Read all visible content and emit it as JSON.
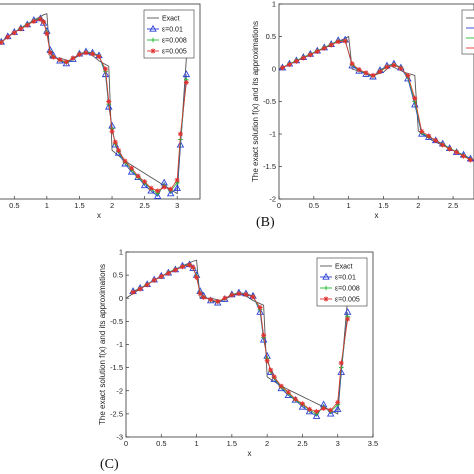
{
  "chart_data": [
    {
      "panel_label": "",
      "type": "line",
      "xlabel": "x",
      "ylabel": "",
      "xlim": [
        0,
        3.5
      ],
      "ylim": [
        -3,
        1
      ],
      "xticks": [
        "0.5",
        "1",
        "1.5",
        "2",
        "2.5",
        "3"
      ],
      "yticks": [],
      "legend": {
        "placement": "top-right",
        "entries": [
          "Exact",
          "ε=0.01",
          "ε=0.008",
          "ε=0.005"
        ]
      },
      "series": [
        {
          "name": "Exact",
          "color": "#555555",
          "marker": "none",
          "x": [
            0,
            0.2,
            0.4,
            0.6,
            0.8,
            0.95,
            1.0,
            1.05,
            1.2,
            1.35,
            1.5,
            1.6,
            1.7,
            1.8,
            1.95,
            2.0,
            2.05,
            2.2,
            2.4,
            2.6,
            2.8,
            3.0,
            3.0,
            3.141
          ],
          "y": [
            0.0,
            0.2,
            0.39,
            0.56,
            0.7,
            0.8,
            0.82,
            0.0,
            0.0,
            -0.05,
            0.05,
            0.1,
            0.05,
            -0.05,
            -0.15,
            -1.7,
            -1.75,
            -1.9,
            -2.05,
            -2.2,
            -2.35,
            -2.5,
            -2.5,
            0.0
          ]
        },
        {
          "name": "ε=0.01",
          "color": "#2b3fd6",
          "marker": "triangle",
          "x": [
            0.1,
            0.2,
            0.3,
            0.4,
            0.5,
            0.6,
            0.7,
            0.8,
            0.9,
            0.95,
            1.0,
            1.05,
            1.1,
            1.2,
            1.3,
            1.4,
            1.5,
            1.6,
            1.7,
            1.8,
            1.9,
            1.95,
            2.0,
            2.05,
            2.1,
            2.2,
            2.3,
            2.4,
            2.5,
            2.6,
            2.7,
            2.8,
            2.9,
            3.0,
            3.05,
            3.141
          ],
          "y": [
            0.15,
            0.22,
            0.3,
            0.4,
            0.48,
            0.55,
            0.62,
            0.7,
            0.73,
            0.65,
            0.5,
            0.15,
            0.05,
            -0.05,
            -0.1,
            -0.02,
            0.08,
            0.12,
            0.1,
            0.05,
            -0.3,
            -0.9,
            -1.25,
            -1.6,
            -1.75,
            -1.95,
            -2.1,
            -2.2,
            -2.35,
            -2.45,
            -2.55,
            -2.3,
            -2.5,
            -2.4,
            -1.6,
            -0.3
          ]
        },
        {
          "name": "ε=0.008",
          "color": "#22bb33",
          "marker": "plus",
          "x": [
            0.1,
            0.2,
            0.3,
            0.4,
            0.5,
            0.6,
            0.7,
            0.8,
            0.9,
            0.95,
            1.0,
            1.05,
            1.1,
            1.2,
            1.3,
            1.4,
            1.5,
            1.6,
            1.7,
            1.8,
            1.9,
            1.95,
            2.0,
            2.05,
            2.1,
            2.2,
            2.3,
            2.4,
            2.5,
            2.6,
            2.7,
            2.8,
            2.9,
            3.0,
            3.05,
            3.141
          ],
          "y": [
            0.14,
            0.21,
            0.3,
            0.39,
            0.47,
            0.55,
            0.62,
            0.69,
            0.73,
            0.66,
            0.48,
            0.12,
            0.03,
            -0.04,
            -0.08,
            -0.01,
            0.08,
            0.11,
            0.09,
            0.04,
            -0.25,
            -0.85,
            -1.3,
            -1.58,
            -1.72,
            -1.92,
            -2.06,
            -2.2,
            -2.3,
            -2.42,
            -2.5,
            -2.35,
            -2.45,
            -2.3,
            -1.5,
            -0.4
          ]
        },
        {
          "name": "ε=0.005",
          "color": "#e03030",
          "marker": "star",
          "x": [
            0.1,
            0.2,
            0.3,
            0.4,
            0.5,
            0.6,
            0.7,
            0.8,
            0.9,
            0.95,
            1.0,
            1.05,
            1.1,
            1.2,
            1.3,
            1.4,
            1.5,
            1.6,
            1.7,
            1.8,
            1.9,
            1.95,
            2.0,
            2.05,
            2.1,
            2.2,
            2.3,
            2.4,
            2.5,
            2.6,
            2.7,
            2.8,
            2.9,
            3.0,
            3.05,
            3.141
          ],
          "y": [
            0.13,
            0.2,
            0.29,
            0.39,
            0.47,
            0.54,
            0.61,
            0.68,
            0.72,
            0.67,
            0.45,
            0.1,
            0.02,
            -0.03,
            -0.07,
            0.0,
            0.07,
            0.1,
            0.08,
            0.03,
            -0.2,
            -0.8,
            -1.35,
            -1.55,
            -1.7,
            -1.9,
            -2.03,
            -2.18,
            -2.28,
            -2.4,
            -2.45,
            -2.38,
            -2.42,
            -2.25,
            -1.4,
            -0.45
          ]
        }
      ]
    },
    {
      "panel_label": "(B)",
      "type": "line",
      "xlabel": "x",
      "ylabel": "The exact solution f(x) and its approximations",
      "xlim": [
        0,
        2.8
      ],
      "ylim": [
        -2,
        1
      ],
      "xticks": [
        "0",
        "0.5",
        "1",
        "1.5",
        "2",
        "2.5"
      ],
      "yticks": [
        "1",
        "0.5",
        "0",
        "-0.5",
        "-1",
        "-1.5",
        "-2"
      ],
      "legend": {
        "placement": "top-right",
        "entries": []
      },
      "series": [
        {
          "name": "",
          "color": "#555555",
          "marker": "none",
          "x": [
            0,
            0.2,
            0.4,
            0.6,
            0.8,
            0.95,
            1.0,
            1.05,
            1.2,
            1.35,
            1.5,
            1.6,
            1.7,
            1.8,
            1.95,
            2.0,
            2.05,
            2.2,
            2.4,
            2.6,
            2.8
          ],
          "y": [
            0.0,
            0.1,
            0.2,
            0.3,
            0.4,
            0.47,
            0.5,
            0.0,
            -0.05,
            -0.1,
            -0.05,
            0.05,
            0.0,
            -0.05,
            -0.1,
            -0.95,
            -1.0,
            -1.1,
            -1.2,
            -1.3,
            -1.4
          ]
        },
        {
          "name": "",
          "color": "#2b3fd6",
          "marker": "triangle",
          "x": [
            0.05,
            0.15,
            0.25,
            0.35,
            0.45,
            0.55,
            0.65,
            0.75,
            0.85,
            0.95,
            1.05,
            1.15,
            1.25,
            1.35,
            1.45,
            1.55,
            1.65,
            1.75,
            1.85,
            1.95,
            2.05,
            2.15,
            2.25,
            2.35,
            2.45,
            2.55,
            2.65,
            2.75
          ],
          "y": [
            0.02,
            0.08,
            0.13,
            0.18,
            0.23,
            0.28,
            0.33,
            0.38,
            0.44,
            0.45,
            0.05,
            -0.03,
            -0.08,
            -0.12,
            -0.02,
            0.05,
            0.08,
            0.02,
            -0.15,
            -0.55,
            -1.0,
            -1.05,
            -1.1,
            -1.15,
            -1.22,
            -1.28,
            -1.32,
            -1.38
          ]
        },
        {
          "name": "",
          "color": "#22bb33",
          "marker": "plus",
          "x": [
            0.05,
            0.15,
            0.25,
            0.35,
            0.45,
            0.55,
            0.65,
            0.75,
            0.85,
            0.95,
            1.05,
            1.15,
            1.25,
            1.35,
            1.45,
            1.55,
            1.65,
            1.75,
            1.85,
            1.95,
            2.05,
            2.15,
            2.25,
            2.35,
            2.45,
            2.55,
            2.65,
            2.75
          ],
          "y": [
            0.02,
            0.08,
            0.13,
            0.18,
            0.23,
            0.28,
            0.33,
            0.38,
            0.43,
            0.44,
            0.07,
            -0.02,
            -0.07,
            -0.11,
            -0.03,
            0.04,
            0.07,
            0.02,
            -0.12,
            -0.5,
            -0.98,
            -1.04,
            -1.1,
            -1.16,
            -1.22,
            -1.27,
            -1.33,
            -1.39
          ]
        },
        {
          "name": "",
          "color": "#e03030",
          "marker": "star",
          "x": [
            0.05,
            0.15,
            0.25,
            0.35,
            0.45,
            0.55,
            0.65,
            0.75,
            0.85,
            0.95,
            1.05,
            1.15,
            1.25,
            1.35,
            1.45,
            1.55,
            1.65,
            1.75,
            1.85,
            1.95,
            2.05,
            2.15,
            2.25,
            2.35,
            2.45,
            2.55,
            2.65,
            2.75
          ],
          "y": [
            0.02,
            0.07,
            0.12,
            0.17,
            0.22,
            0.27,
            0.32,
            0.37,
            0.42,
            0.43,
            0.08,
            -0.01,
            -0.06,
            -0.1,
            -0.04,
            0.03,
            0.06,
            0.01,
            -0.1,
            -0.45,
            -0.96,
            -1.03,
            -1.1,
            -1.17,
            -1.23,
            -1.28,
            -1.34,
            -1.4
          ]
        }
      ]
    },
    {
      "panel_label": "(C)",
      "type": "line",
      "xlabel": "x",
      "ylabel": "The exact solution f(x) and its approximations",
      "xlim": [
        0,
        3.5
      ],
      "ylim": [
        -3,
        1
      ],
      "xticks": [
        "0",
        "0.5",
        "1",
        "1.5",
        "2",
        "2.5",
        "3",
        "3.5"
      ],
      "yticks": [
        "1",
        "0.5",
        "0",
        "-0.5",
        "-1",
        "-1.5",
        "-2",
        "-2.5",
        "-3"
      ],
      "legend": {
        "placement": "top-right",
        "entries": [
          "Exact",
          "ε=0.01",
          "ε=0.008",
          "ε=0.005"
        ]
      },
      "series": [
        {
          "name": "Exact",
          "color": "#555555",
          "marker": "none",
          "x": [
            0,
            0.2,
            0.4,
            0.6,
            0.8,
            0.95,
            1.0,
            1.05,
            1.2,
            1.35,
            1.5,
            1.6,
            1.7,
            1.8,
            1.95,
            2.0,
            2.05,
            2.2,
            2.4,
            2.6,
            2.8,
            3.0,
            3.0,
            3.141
          ],
          "y": [
            0.0,
            0.2,
            0.39,
            0.56,
            0.7,
            0.8,
            0.82,
            0.0,
            0.0,
            -0.05,
            0.05,
            0.1,
            0.05,
            -0.05,
            -0.15,
            -1.7,
            -1.75,
            -1.9,
            -2.05,
            -2.2,
            -2.35,
            -2.5,
            -2.5,
            0.0
          ]
        },
        {
          "name": "ε=0.01",
          "color": "#2b3fd6",
          "marker": "triangle",
          "x": [
            0.1,
            0.2,
            0.3,
            0.4,
            0.5,
            0.6,
            0.7,
            0.8,
            0.9,
            0.95,
            1.0,
            1.05,
            1.1,
            1.2,
            1.3,
            1.4,
            1.5,
            1.6,
            1.7,
            1.8,
            1.9,
            1.95,
            2.0,
            2.05,
            2.1,
            2.2,
            2.3,
            2.4,
            2.5,
            2.6,
            2.7,
            2.8,
            2.9,
            3.0,
            3.05,
            3.141
          ],
          "y": [
            0.15,
            0.22,
            0.3,
            0.4,
            0.48,
            0.55,
            0.62,
            0.7,
            0.73,
            0.65,
            0.5,
            0.15,
            0.05,
            -0.05,
            -0.1,
            -0.02,
            0.08,
            0.12,
            0.1,
            0.05,
            -0.3,
            -0.9,
            -1.25,
            -1.6,
            -1.75,
            -1.95,
            -2.1,
            -2.2,
            -2.35,
            -2.45,
            -2.55,
            -2.3,
            -2.5,
            -2.4,
            -1.6,
            -0.3
          ]
        },
        {
          "name": "ε=0.008",
          "color": "#22bb33",
          "marker": "plus",
          "x": [
            0.1,
            0.2,
            0.3,
            0.4,
            0.5,
            0.6,
            0.7,
            0.8,
            0.9,
            0.95,
            1.0,
            1.05,
            1.1,
            1.2,
            1.3,
            1.4,
            1.5,
            1.6,
            1.7,
            1.8,
            1.9,
            1.95,
            2.0,
            2.05,
            2.1,
            2.2,
            2.3,
            2.4,
            2.5,
            2.6,
            2.7,
            2.8,
            2.9,
            3.0,
            3.05,
            3.141
          ],
          "y": [
            0.14,
            0.21,
            0.3,
            0.39,
            0.47,
            0.55,
            0.62,
            0.69,
            0.73,
            0.66,
            0.48,
            0.12,
            0.03,
            -0.04,
            -0.08,
            -0.01,
            0.08,
            0.11,
            0.09,
            0.04,
            -0.25,
            -0.85,
            -1.3,
            -1.58,
            -1.72,
            -1.92,
            -2.06,
            -2.2,
            -2.3,
            -2.42,
            -2.5,
            -2.35,
            -2.45,
            -2.3,
            -1.5,
            -0.4
          ]
        },
        {
          "name": "ε=0.005",
          "color": "#e03030",
          "marker": "star",
          "x": [
            0.1,
            0.2,
            0.3,
            0.4,
            0.5,
            0.6,
            0.7,
            0.8,
            0.9,
            0.95,
            1.0,
            1.05,
            1.1,
            1.2,
            1.3,
            1.4,
            1.5,
            1.6,
            1.7,
            1.8,
            1.9,
            1.95,
            2.0,
            2.05,
            2.1,
            2.2,
            2.3,
            2.4,
            2.5,
            2.6,
            2.7,
            2.8,
            2.9,
            3.0,
            3.05,
            3.141
          ],
          "y": [
            0.13,
            0.2,
            0.29,
            0.39,
            0.47,
            0.54,
            0.61,
            0.68,
            0.72,
            0.67,
            0.45,
            0.1,
            0.02,
            -0.03,
            -0.07,
            0.0,
            0.07,
            0.1,
            0.08,
            0.03,
            -0.2,
            -0.8,
            -1.35,
            -1.55,
            -1.7,
            -1.9,
            -2.03,
            -2.18,
            -2.28,
            -2.4,
            -2.45,
            -2.38,
            -2.42,
            -2.25,
            -1.4,
            -0.45
          ]
        }
      ]
    }
  ]
}
